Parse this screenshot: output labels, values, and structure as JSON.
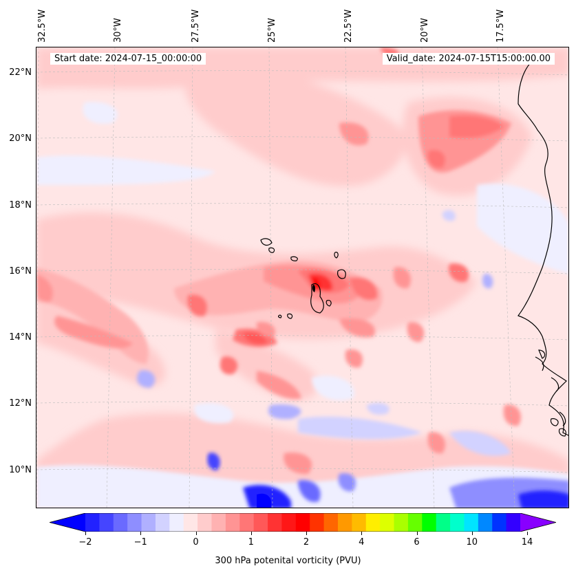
{
  "header": {
    "start_date": "Start date: 2024-07-15_00:00:00",
    "valid_date": "Valid_date: 2024-07-15T15:00:00.00"
  },
  "axes": {
    "lon_labels": [
      "32.5°W",
      "30°W",
      "27.5°W",
      "25°W",
      "22.5°W",
      "20°W",
      "17.5°W"
    ],
    "lat_labels": [
      "22°N",
      "20°N",
      "18°N",
      "16°N",
      "14°N",
      "12°N",
      "10°N"
    ]
  },
  "colorbar": {
    "label": "300 hPa potenital vorticity (PVU)",
    "ticks": [
      "−2",
      "−1",
      "0",
      "1",
      "2",
      "4",
      "6",
      "10",
      "14"
    ],
    "colors": [
      "#0000ff",
      "#2222ff",
      "#4545ff",
      "#6a6aff",
      "#8e8eff",
      "#b0b0ff",
      "#d2d2ff",
      "#efefff",
      "#ffe6e6",
      "#ffcccc",
      "#ffb2b2",
      "#ff9494",
      "#ff7676",
      "#ff5858",
      "#ff3333",
      "#ff1717",
      "#ff0000",
      "#ff3300",
      "#ff6600",
      "#ff9900",
      "#ffbb00",
      "#ffee00",
      "#ddff00",
      "#aaff00",
      "#66ff00",
      "#00ff00",
      "#00ff88",
      "#00ffcc",
      "#00e5ff",
      "#0088ff",
      "#0033ff",
      "#3300ff",
      "#8800ff"
    ]
  },
  "map": {
    "background_color": "#ffe6e6",
    "coastline_color": "#000000"
  }
}
